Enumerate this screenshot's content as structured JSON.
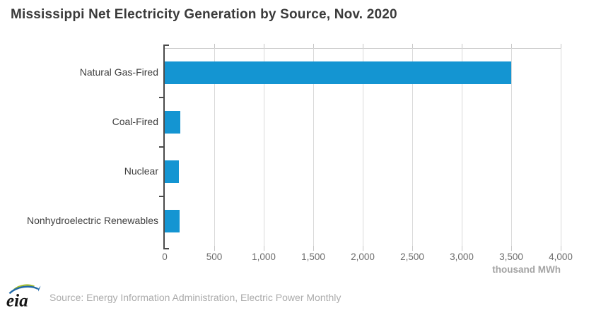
{
  "title": "Mississippi Net Electricity Generation by Source, Nov. 2020",
  "chart_data": {
    "type": "bar",
    "orientation": "horizontal",
    "title": "Mississippi Net Electricity Generation by Source, Nov. 2020",
    "categories": [
      "Natural Gas-Fired",
      "Coal-Fired",
      "Nuclear",
      "Nonhydroelectric Renewables"
    ],
    "values": [
      3500,
      160,
      145,
      150
    ],
    "xlabel": "thousand MWh",
    "xlim": [
      0,
      4000
    ],
    "xticks": [
      {
        "value": 0,
        "label": "0"
      },
      {
        "value": 500,
        "label": "500"
      },
      {
        "value": 1000,
        "label": "1,000"
      },
      {
        "value": 1500,
        "label": "1,500"
      },
      {
        "value": 2000,
        "label": "2,000"
      },
      {
        "value": 2500,
        "label": "2,500"
      },
      {
        "value": 3000,
        "label": "3,000"
      },
      {
        "value": 3500,
        "label": "3,500"
      },
      {
        "value": 4000,
        "label": "4,000"
      }
    ],
    "grid": true,
    "legend_position": "none",
    "bar_color": "#1495d2"
  },
  "colors": {
    "bar": "#1495d2",
    "axis": "#4a4a4a",
    "gridline": "#d9d9d9",
    "title_text": "#3a3a3a",
    "tick_text": "#6b6b6b",
    "muted_text": "#a3a3a3",
    "logo_green": "#a4bd2d",
    "logo_blue": "#2069a8"
  },
  "footer": {
    "logo_text": "eia",
    "source_text": "Source: Energy Information Administration, Electric Power Monthly"
  }
}
